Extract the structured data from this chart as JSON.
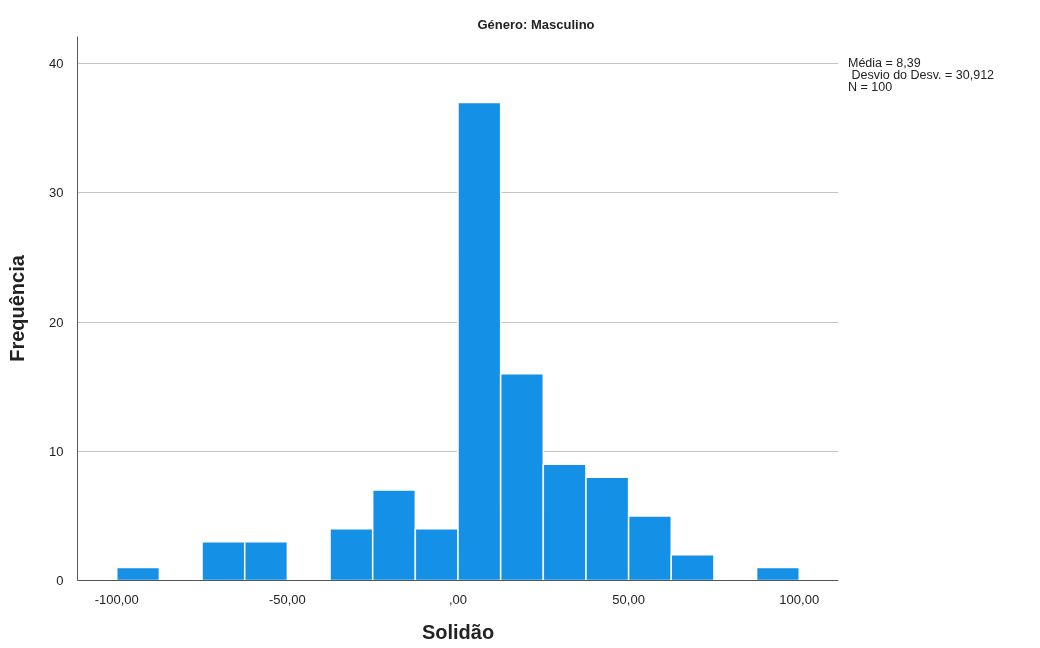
{
  "chart_data": {
    "type": "histogram",
    "title": "Género: Masculino",
    "xlabel": "Solidão",
    "ylabel": "Frequência",
    "annotations": [
      "Média = 8,39",
      " Desvio do Desv. = 30,912",
      "N = 100"
    ],
    "bins": [
      -100,
      -87.5,
      -75,
      -62.5,
      -50,
      -37.5,
      -25,
      -12.5,
      0,
      12.5,
      25,
      37.5,
      50,
      62.5,
      75,
      87.5,
      100
    ],
    "values": [
      1,
      0,
      3,
      3,
      0,
      4,
      7,
      4,
      37,
      16,
      9,
      8,
      5,
      2,
      0,
      1
    ],
    "color": "#1490e6",
    "xlim": [
      -111.5,
      111.5
    ],
    "ylim": [
      0,
      42.1
    ],
    "xticks": [
      {
        "value": -100,
        "label": "-100,00"
      },
      {
        "value": -50,
        "label": "-50,00"
      },
      {
        "value": 0,
        "label": ",00"
      },
      {
        "value": 50,
        "label": "50,00"
      },
      {
        "value": 100,
        "label": "100,00"
      }
    ],
    "yticks": [
      0,
      10,
      20,
      30,
      40
    ],
    "grid": "y"
  }
}
